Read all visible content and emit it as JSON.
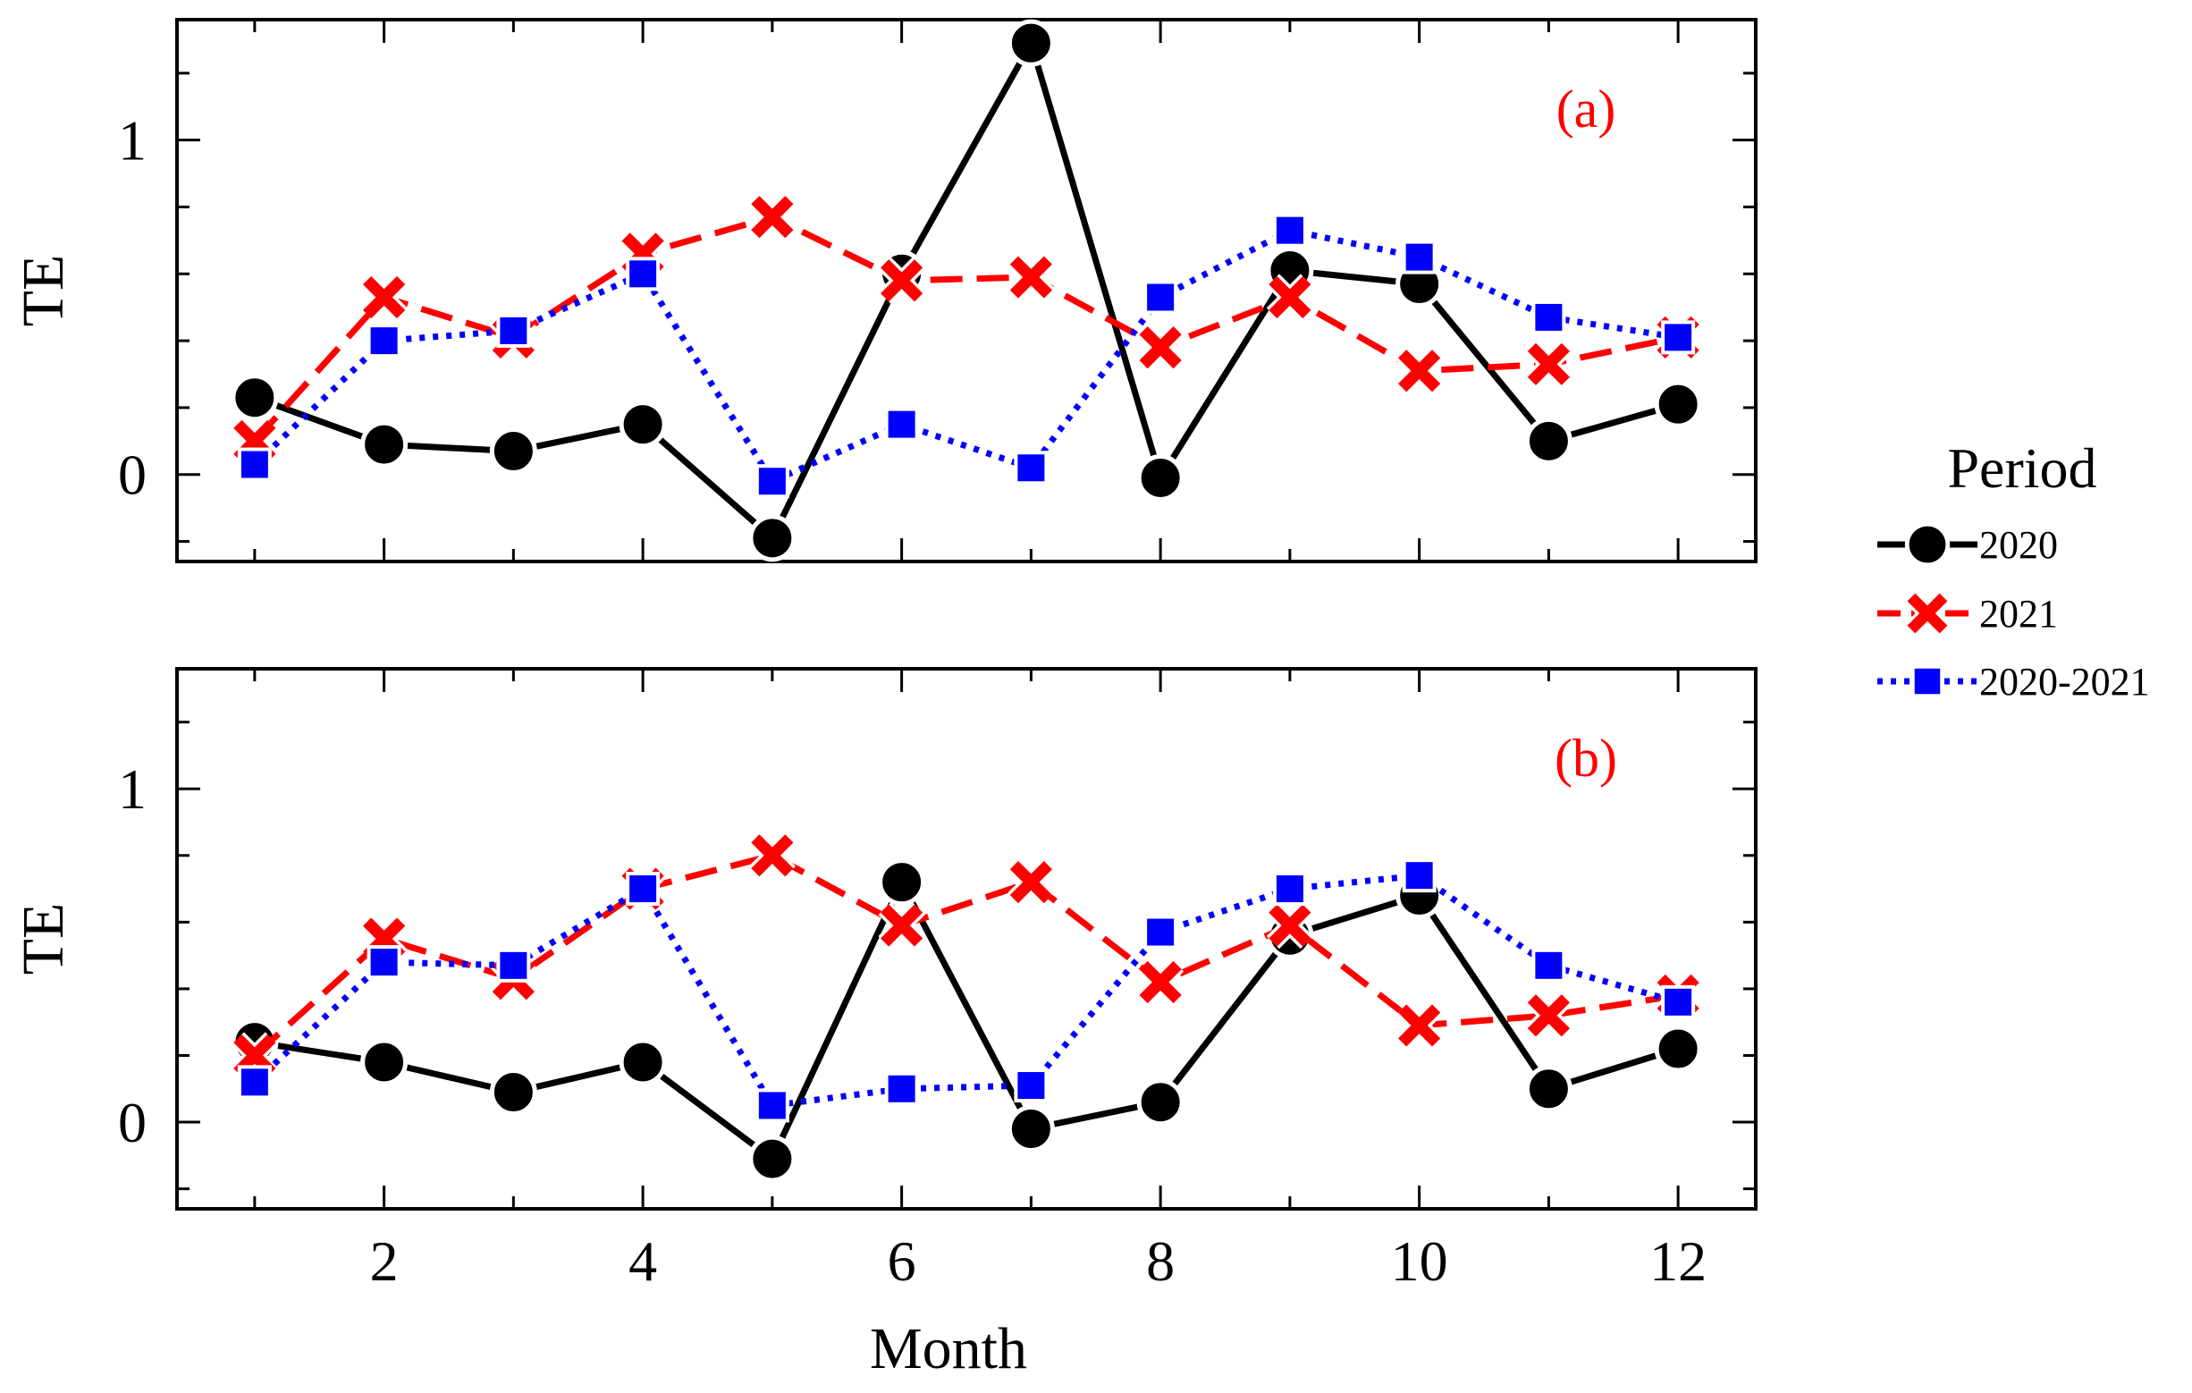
{
  "colors": {
    "s2020": "#000000",
    "s2021": "#ff0000",
    "s2020_2021": "#0000ff",
    "panel_label": "#ff0000"
  },
  "legend": {
    "title": "Period",
    "entries": [
      {
        "name": "2020",
        "marker": "circle",
        "dash": "solid"
      },
      {
        "name": "2021",
        "marker": "x",
        "dash": "dashed"
      },
      {
        "name": "2020-2021",
        "marker": "square",
        "dash": "dotted"
      }
    ]
  },
  "chart_data": [
    {
      "type": "line",
      "panel_label": "(a)",
      "xlabel": "",
      "ylabel": "TE",
      "x": [
        1,
        2,
        3,
        4,
        5,
        6,
        7,
        8,
        9,
        10,
        11,
        12
      ],
      "xlim": [
        0.4,
        12.6
      ],
      "ylim": [
        -0.26,
        1.36
      ],
      "xticks": [
        2,
        4,
        6,
        8,
        10,
        12
      ],
      "yticks": [
        0,
        1
      ],
      "series": [
        {
          "name": "2020",
          "values": [
            0.23,
            0.09,
            0.07,
            0.15,
            -0.19,
            0.6,
            1.29,
            -0.01,
            0.61,
            0.57,
            0.1,
            0.21
          ]
        },
        {
          "name": "2021",
          "values": [
            0.1,
            0.53,
            0.41,
            0.66,
            0.77,
            0.58,
            0.59,
            0.38,
            0.53,
            0.31,
            0.33,
            0.41
          ]
        },
        {
          "name": "2020-2021",
          "values": [
            0.03,
            0.4,
            0.43,
            0.6,
            -0.02,
            0.15,
            0.02,
            0.53,
            0.73,
            0.65,
            0.47,
            0.41
          ]
        }
      ]
    },
    {
      "type": "line",
      "panel_label": "(b)",
      "xlabel": "Month",
      "ylabel": "TE",
      "x": [
        1,
        2,
        3,
        4,
        5,
        6,
        7,
        8,
        9,
        10,
        11,
        12
      ],
      "xlim": [
        0.4,
        12.6
      ],
      "ylim": [
        -0.26,
        1.36
      ],
      "xticks": [
        2,
        4,
        6,
        8,
        10,
        12
      ],
      "yticks": [
        0,
        1
      ],
      "series": [
        {
          "name": "2020",
          "values": [
            0.24,
            0.18,
            0.09,
            0.18,
            -0.11,
            0.72,
            -0.02,
            0.06,
            0.56,
            0.68,
            0.1,
            0.22
          ]
        },
        {
          "name": "2021",
          "values": [
            0.2,
            0.55,
            0.43,
            0.7,
            0.8,
            0.59,
            0.72,
            0.42,
            0.59,
            0.29,
            0.32,
            0.38
          ]
        },
        {
          "name": "2020-2021",
          "values": [
            0.12,
            0.48,
            0.47,
            0.7,
            0.05,
            0.1,
            0.11,
            0.57,
            0.7,
            0.74,
            0.47,
            0.36
          ]
        }
      ]
    }
  ]
}
